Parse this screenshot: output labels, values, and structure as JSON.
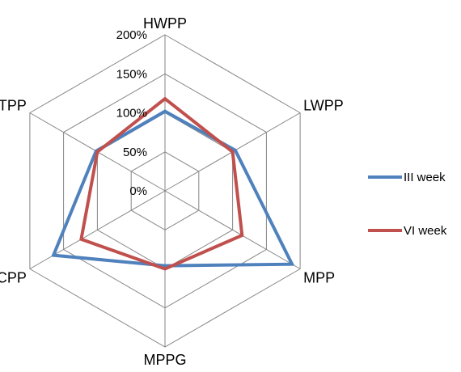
{
  "chart_data": {
    "type": "radar",
    "axes": [
      "HWPP",
      "LWPP",
      "MPP",
      "MPPG",
      "CPP",
      "TPP"
    ],
    "ticks": [
      "0%",
      "50%",
      "100%",
      "150%",
      "200%"
    ],
    "rlim": [
      0,
      200
    ],
    "grid": true,
    "legend_position": "right",
    "series": [
      {
        "name": "III week",
        "color": "#4f81bd",
        "values": [
          102,
          104,
          188,
          96,
          165,
          102
        ]
      },
      {
        "name": "VI week",
        "color": "#c0504d",
        "values": [
          118,
          100,
          114,
          100,
          124,
          100
        ]
      }
    ]
  }
}
